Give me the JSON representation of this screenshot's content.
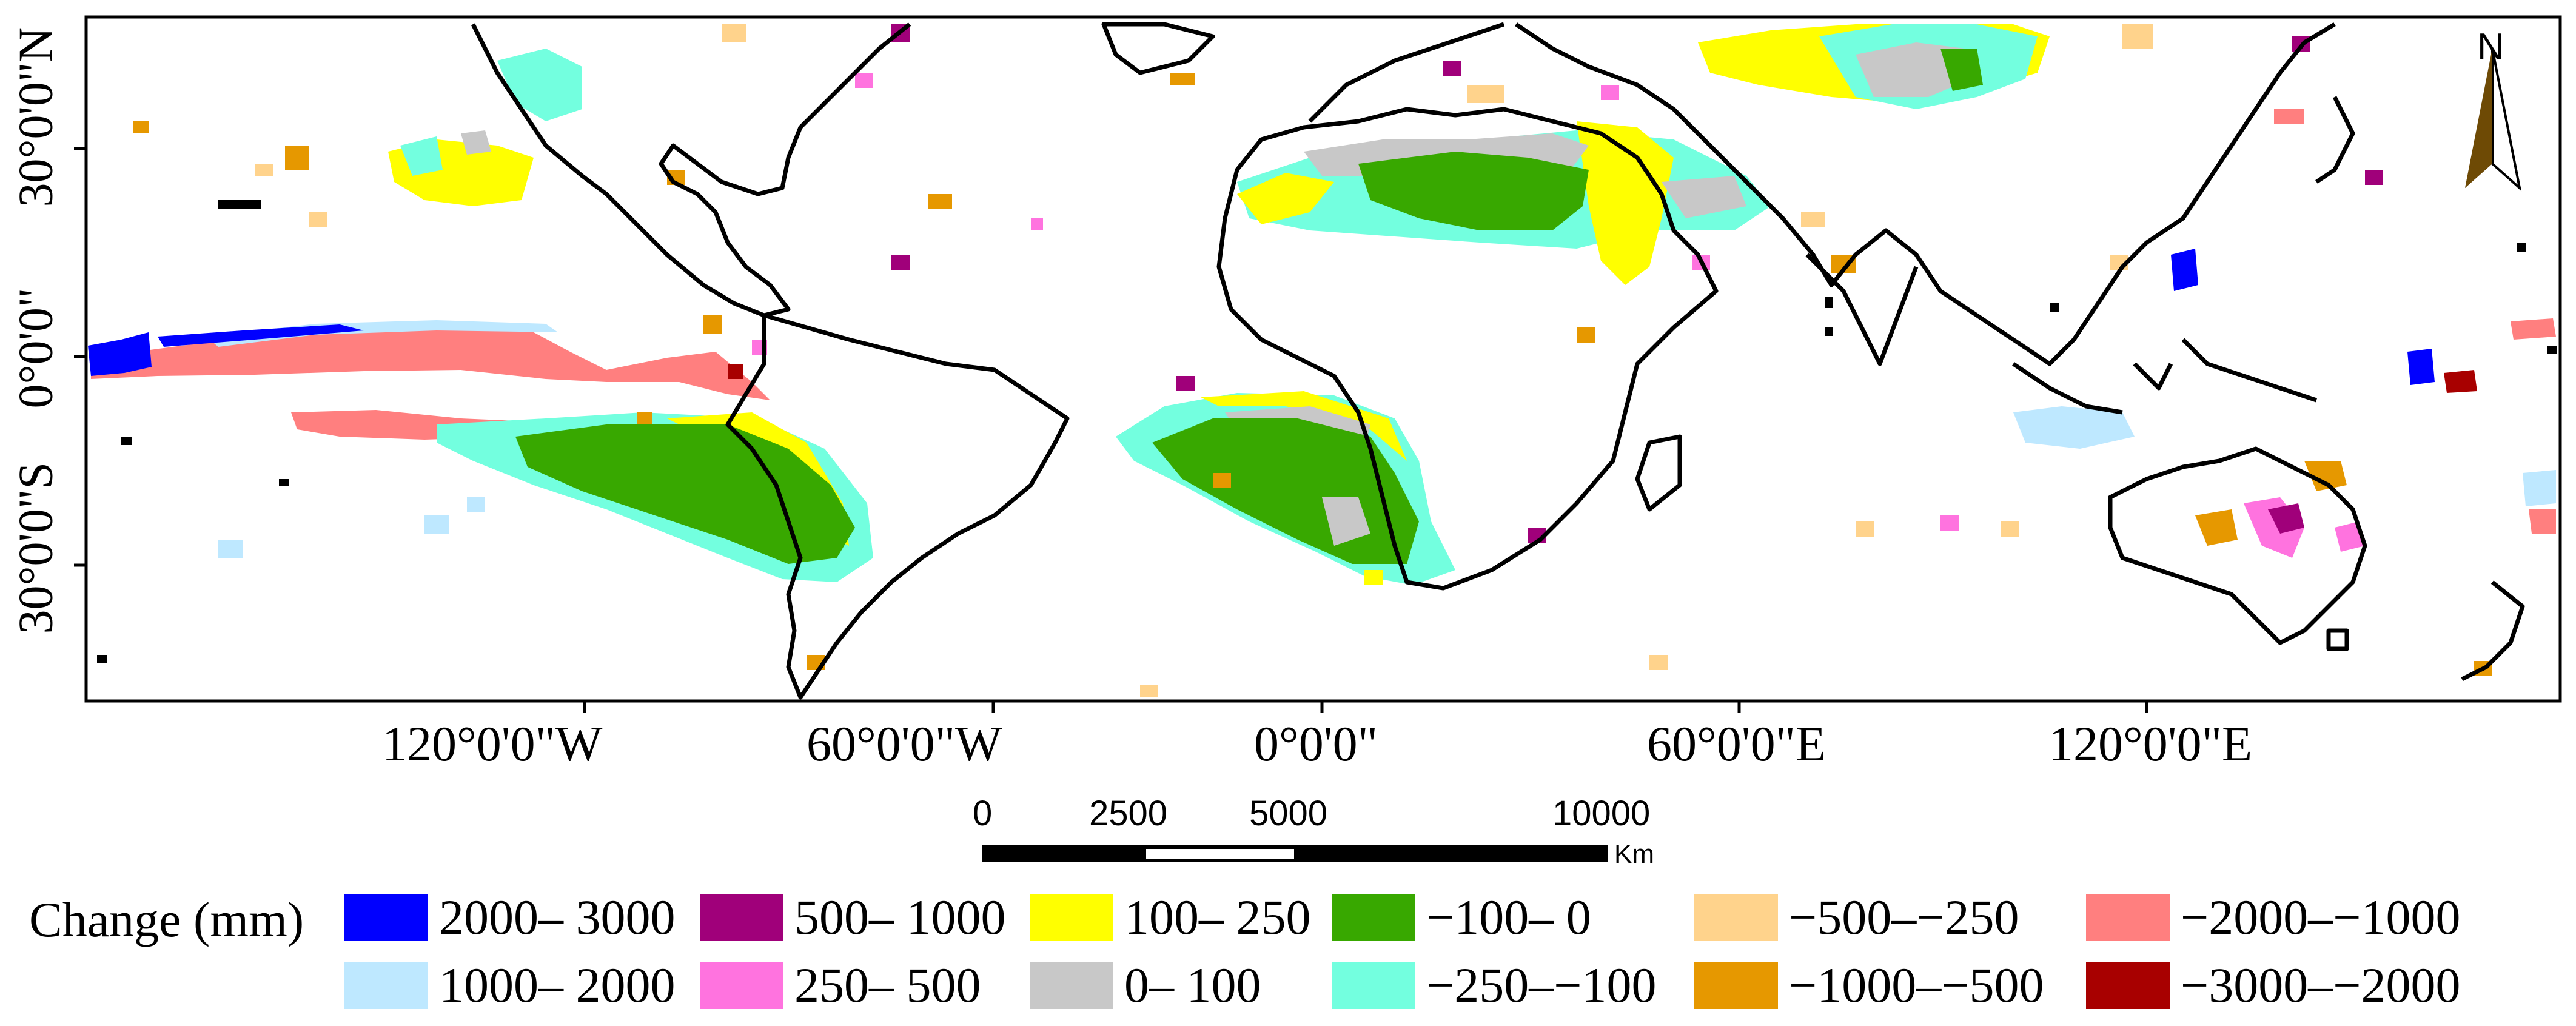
{
  "map": {
    "longitude_labels": [
      "120°0'0\"W",
      "60°0'0\"W",
      "0°0'0\"",
      "60°0'0\"E",
      "120°0'0\"E"
    ],
    "latitude_labels": [
      "30°0'0\"N",
      "0°0'0\"",
      "30°0'0\"S"
    ],
    "north_arrow_label": "N",
    "scale_bar": {
      "ticks": [
        "0",
        "2500",
        "5000",
        "10000"
      ],
      "unit": "Km"
    }
  },
  "legend": {
    "title": "Change (mm)",
    "items": [
      {
        "label": "2000– 3000",
        "color": "#0000ff"
      },
      {
        "label": "500– 1000",
        "color": "#a0007a"
      },
      {
        "label": "100– 250",
        "color": "#ffff00"
      },
      {
        "label": "−100–  0",
        "color": "#38a800"
      },
      {
        "label": "−500–−250",
        "color": "#ffd38c"
      },
      {
        "label": "−2000–−1000",
        "color": "#ff7f7f"
      },
      {
        "label": "1000– 2000",
        "color": "#bee8ff"
      },
      {
        "label": "250– 500",
        "color": "#ff73df"
      },
      {
        "label": "0– 100",
        "color": "#c8c8c8"
      },
      {
        "label": "−250–−100",
        "color": "#73ffdf"
      },
      {
        "label": "−1000–−500",
        "color": "#e69800"
      },
      {
        "label": "−3000–−2000",
        "color": "#a80000"
      }
    ]
  }
}
